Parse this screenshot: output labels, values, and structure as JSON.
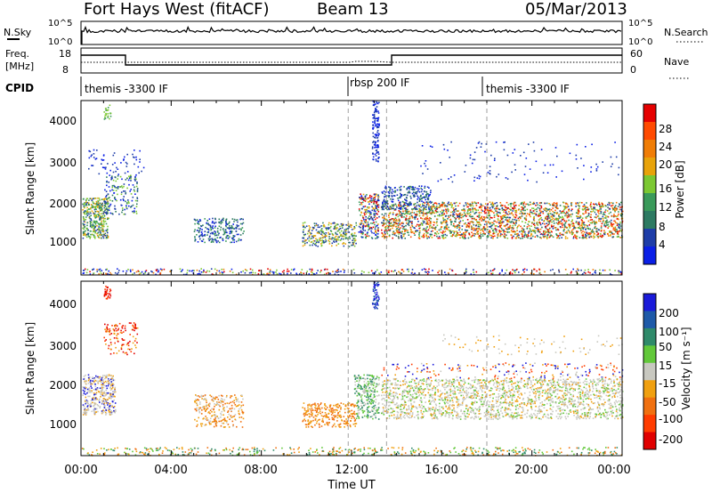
{
  "header": {
    "title": "Fort Hays West (fitACF)",
    "beam": "Beam 13",
    "date": "05/Mar/2013"
  },
  "nsky": {
    "left_label": "N.Sky",
    "left_ticks": [
      "10^5",
      "10^0"
    ],
    "right_ticks": [
      "10^5",
      "10^0"
    ],
    "right_label": "N.Search"
  },
  "freq": {
    "left_label_1": "Freq.",
    "left_label_2": "[MHz]",
    "left_ticks": [
      "18",
      "8"
    ],
    "right_ticks": [
      "60",
      "0"
    ],
    "right_label": "Nave"
  },
  "cpid": {
    "label": "CPID",
    "segments": [
      "themis -3300 IF",
      "rbsp 200 IF",
      "themis -3300 IF"
    ]
  },
  "chart_data": [
    {
      "type": "heatmap",
      "name": "power",
      "ylabel": "Slant Range [km]",
      "yticks": [
        "4000",
        "3000",
        "2000",
        "1000"
      ],
      "ylim": [
        180,
        4500
      ],
      "xlim_hours": [
        0,
        24
      ],
      "colorbar_label": "Power [dB]",
      "colorbar_ticks": [
        "28",
        "24",
        "20",
        "16",
        "12",
        "8",
        "4"
      ],
      "colors": [
        "#0a1fe6",
        "#1e3da8",
        "#2d7a62",
        "#3a9a5a",
        "#7cc832",
        "#e8a30a",
        "#f07d06",
        "#ff4a00",
        "#e50000"
      ]
    },
    {
      "type": "heatmap",
      "name": "velocity",
      "ylabel": "Slant Range [km]",
      "yticks": [
        "4000",
        "3000",
        "2000",
        "1000"
      ],
      "ylim": [
        180,
        4500
      ],
      "xlim_hours": [
        0,
        24
      ],
      "colorbar_label": "Velocity [m s⁻¹]",
      "colorbar_ticks": [
        "200",
        "100",
        "50",
        "15",
        "-15",
        "-50",
        "-100",
        "-200"
      ],
      "colors": [
        "#1a1ad9",
        "#1e5aa8",
        "#2f8a6a",
        "#62c83a",
        "#c8c8c0",
        "#f0a010",
        "#f07010",
        "#ff3c00",
        "#e00000"
      ]
    }
  ],
  "xaxis": {
    "tick_labels": [
      "00:00",
      "04:00",
      "08:00",
      "12:00",
      "16:00",
      "20:00",
      "00:00"
    ],
    "label": "Time UT"
  }
}
